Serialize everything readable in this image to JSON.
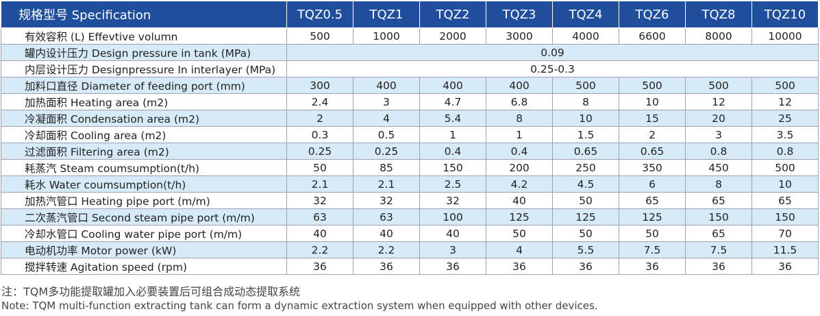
{
  "table": {
    "header": [
      "规格型号 Specification",
      "TQZ0.5",
      "TQZ1",
      "TQZ2",
      "TQZ3",
      "TQZ4",
      "TQZ6",
      "TQZ8",
      "TQZ10"
    ],
    "rows": [
      {
        "label": "有效容积 (L) Effevtive volumn",
        "values": [
          "500",
          "1000",
          "2000",
          "3000",
          "4000",
          "6600",
          "8000",
          "10000"
        ],
        "shaded": false
      },
      {
        "label": "罐内设计压力 Design pressure in tank (MPa)",
        "span_value": "0.09",
        "shaded": true
      },
      {
        "label": "内层设计压力 Designpressure In interlayer (MPa)",
        "span_value": "0.25-0.3",
        "shaded": false
      },
      {
        "label": "加料口直径 Diameter of feeding port (mm)",
        "values": [
          "300",
          "400",
          "400",
          "400",
          "500",
          "500",
          "500",
          "500"
        ],
        "shaded": true
      },
      {
        "label": "加热面积 Heating area (m2)",
        "values": [
          "2.4",
          "3",
          "4.7",
          "6.8",
          "8",
          "10",
          "12",
          "12"
        ],
        "shaded": false
      },
      {
        "label": "冷凝面积 Condensation area (m2)",
        "values": [
          "2",
          "4",
          "5.4",
          "8",
          "10",
          "15",
          "20",
          "25"
        ],
        "shaded": true
      },
      {
        "label": "冷却面积 Cooling area (m2)",
        "values": [
          "0.3",
          "0.5",
          "1",
          "1",
          "1.5",
          "2",
          "3",
          "3.5"
        ],
        "shaded": false
      },
      {
        "label": "过滤面积 Filtering area (m2)",
        "values": [
          "0.25",
          "0.25",
          "0.4",
          "0.4",
          "0.65",
          "0.65",
          "0.8",
          "0.8"
        ],
        "shaded": true
      },
      {
        "label": "耗蒸汽 Steam coumsumption(t/h)",
        "values": [
          "50",
          "85",
          "150",
          "200",
          "250",
          "350",
          "450",
          "500"
        ],
        "shaded": false
      },
      {
        "label": "耗水 Water coumsumption(t/h)",
        "values": [
          "2.1",
          "2.1",
          "2.5",
          "4.2",
          "4.5",
          "6",
          "8",
          "10"
        ],
        "shaded": true
      },
      {
        "label": "加热汽管口 Heating pipe port (m/m)",
        "values": [
          "32",
          "32",
          "32",
          "40",
          "50",
          "65",
          "65",
          "65"
        ],
        "shaded": false
      },
      {
        "label": "二次蒸汽管口 Second steam pipe port (m/m)",
        "values": [
          "63",
          "63",
          "100",
          "125",
          "125",
          "125",
          "150",
          "150"
        ],
        "shaded": true
      },
      {
        "label": "冷却水管口 Cooling water pipe port (m/m)",
        "values": [
          "40",
          "40",
          "40",
          "50",
          "50",
          "50",
          "65",
          "70"
        ],
        "shaded": false
      },
      {
        "label": "电动机功率 Motor power (kW)",
        "values": [
          "2.2",
          "2.2",
          "3",
          "4",
          "5.5",
          "7.5",
          "7.5",
          "11.5"
        ],
        "shaded": true
      },
      {
        "label": "搅拌转速 Agitation speed (rpm)",
        "values": [
          "36",
          "36",
          "36",
          "36",
          "36",
          "36",
          "36",
          "36"
        ],
        "shaded": false
      }
    ]
  },
  "notes": {
    "cn": "注：TQM多功能提取罐加入必要装置后可组合成动态提取系统",
    "en": "Note: TQM multi-function extracting tank can form a dynamic extraction system when equipped with other devices."
  },
  "colors": {
    "header_bg": "#1f4e9c",
    "shaded_row": "#d6ebf7",
    "header_text": "#ffffff"
  }
}
